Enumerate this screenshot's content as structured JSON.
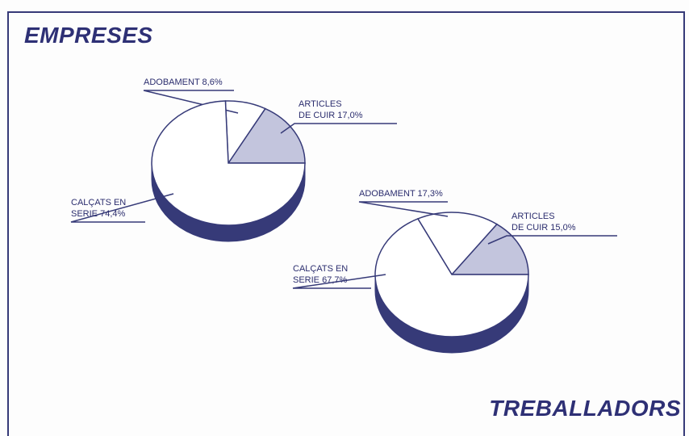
{
  "chart_data": [
    {
      "type": "pie",
      "title": "EMPRESES",
      "categories": [
        "ARTICLES\nDE CUIR",
        "ADOBAMENT",
        "CALÇATS EN\nSERIE"
      ],
      "values": [
        17.0,
        8.6,
        74.4
      ],
      "value_labels": [
        "17,0%",
        "8,6%",
        "74,4%"
      ],
      "colors": [
        "#c3c5dd",
        "#ffffff",
        "#ffffff"
      ],
      "edge_color": "#363a78"
    },
    {
      "type": "pie",
      "title": "TREBALLADORS",
      "categories": [
        "ARTICLES\nDE CUIR",
        "ADOBAMENT",
        "CALÇATS EN\nSERIE"
      ],
      "values": [
        15.0,
        17.3,
        67.7
      ],
      "value_labels": [
        "15,0%",
        "17,3%",
        "67,7%"
      ],
      "colors": [
        "#c3c5dd",
        "#ffffff",
        "#ffffff"
      ],
      "edge_color": "#363a78"
    }
  ]
}
